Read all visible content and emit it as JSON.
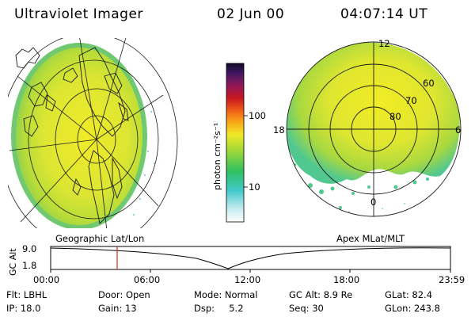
{
  "header": {
    "instrument": "Ultraviolet Imager",
    "date": "02 Jun 00",
    "time": "04:07:14 UT"
  },
  "colorbar": {
    "label": "photon cm⁻²s⁻¹",
    "ticks": [
      "100",
      "10"
    ]
  },
  "left_panel": {
    "caption": "Geographic Lat/Lon"
  },
  "right_panel": {
    "caption": "Apex MLat/MLT",
    "mlt_labels": [
      "12",
      "18",
      "6",
      "0"
    ],
    "mlat_labels": [
      "60",
      "70",
      "80"
    ]
  },
  "altitude_strip": {
    "axis_title": "GC Alt",
    "y_ticks": [
      "9.0",
      "1.8"
    ],
    "x_ticks": [
      "00:00",
      "06:00",
      "12:00",
      "18:00",
      "23:59"
    ],
    "marker_time": "04:07"
  },
  "info": {
    "row1": {
      "flt": "Flt: LBHL",
      "door": "Door: Open",
      "mode": "Mode: Normal",
      "gcalt": "GC Alt: 8.9 Re",
      "glat": "GLat: 82.4"
    },
    "row2": {
      "ip": "IP: 18.0",
      "gain": "Gain: 13",
      "dsp": "Dsp:     5.2",
      "seq": "Seq: 30",
      "glon": "GLon: 243.8"
    }
  },
  "colors": {
    "emission_high": "#d8e830",
    "emission_mid": "#a8dc3c",
    "emission_low": "#40c8a0",
    "marker": "#d03020"
  }
}
